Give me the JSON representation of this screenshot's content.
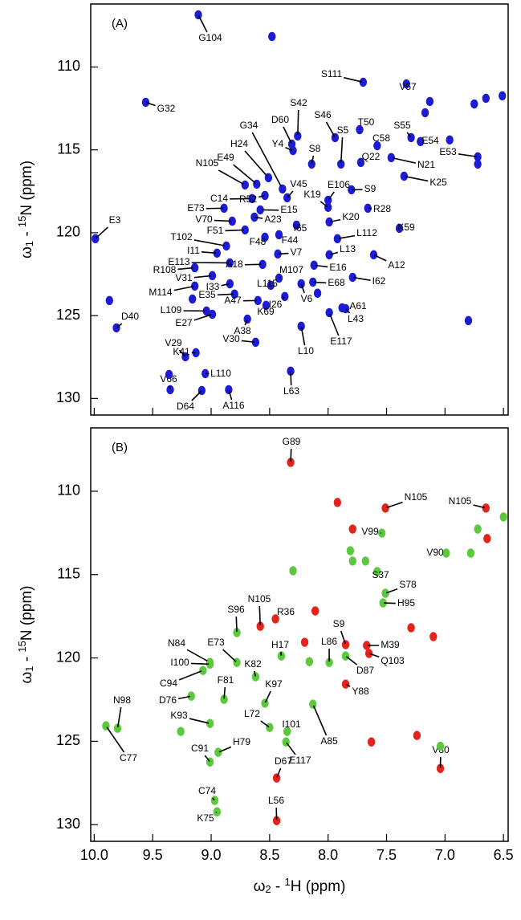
{
  "chart_data": [
    {
      "type": "scatter",
      "title": "(A)",
      "xlim": [
        10.03,
        6.46
      ],
      "ylim": [
        106.2,
        131.0
      ],
      "xticks": [
        10,
        9.5,
        9,
        8.5,
        8,
        7.5,
        7,
        6.5
      ],
      "yticks": [
        110,
        115,
        120,
        125,
        130
      ],
      "ylabel": [
        "ω",
        "1",
        " - ",
        "15",
        "N  (ppm)"
      ],
      "series": [
        {
          "color": "#1c1cd4",
          "x": [
            9.11,
            9.56,
            9.99,
            7.7,
            7.33,
            8.26,
            8.31,
            8.3,
            7.94,
            7.73,
            7.89,
            8.14,
            7.58,
            7.72,
            7.29,
            7.21,
            6.72,
            7.46,
            7.35,
            8.51,
            8.39,
            8.61,
            8.71,
            8.35,
            8.65,
            8.54,
            8.58,
            8.89,
            8.0,
            8.0,
            7.8,
            7.66,
            7.99,
            8.82,
            8.63,
            8.71,
            8.54,
            8.42,
            8.27,
            7.92,
            7.39,
            8.87,
            8.95,
            8.43,
            7.99,
            7.61,
            8.12,
            8.84,
            8.56,
            9.14,
            8.99,
            8.42,
            7.79,
            8.13,
            8.84,
            8.49,
            9.14,
            8.8,
            8.6,
            8.23,
            8.37,
            7.88,
            7.85,
            9.04,
            8.53,
            8.99,
            8.69,
            9.81,
            8.23,
            7.99,
            8.62,
            9.22,
            9.13,
            9.05,
            8.85,
            8.32,
            9.35,
            9.08,
            8.48,
            9.87,
            6.8,
            6.72,
            6.75,
            6.65,
            6.51,
            7.17,
            7.13,
            6.96,
            9.36,
            9.16,
            8.09
          ],
          "y": [
            106.85,
            112.13,
            120.36,
            110.92,
            111.02,
            114.16,
            114.65,
            115.04,
            114.26,
            113.78,
            115.86,
            115.86,
            114.75,
            115.76,
            114.26,
            114.5,
            115.42,
            115.47,
            116.59,
            116.68,
            117.36,
            117.07,
            117.12,
            117.89,
            117.94,
            117.75,
            118.62,
            118.52,
            118.47,
            118.04,
            117.41,
            118.52,
            119.35,
            119.3,
            119.06,
            119.83,
            120.27,
            120.12,
            119.54,
            120.36,
            119.73,
            120.8,
            121.23,
            121.28,
            121.33,
            121.33,
            121.96,
            121.82,
            121.91,
            122.11,
            122.59,
            122.74,
            122.69,
            122.98,
            123.08,
            123.17,
            123.22,
            123.7,
            124.09,
            123.08,
            123.85,
            124.53,
            124.58,
            124.72,
            124.38,
            124.92,
            125.21,
            125.74,
            125.64,
            124.82,
            126.61,
            127.48,
            127.24,
            128.5,
            129.47,
            128.35,
            129.47,
            129.52,
            108.16,
            124.09,
            125.3,
            115.86,
            112.23,
            111.89,
            111.74,
            112.76,
            112.08,
            114.4,
            128.55,
            124.0,
            123.65
          ],
          "labels": [
            "G104",
            "G32",
            "E3",
            "S111",
            "V57",
            "S42",
            "D60",
            "Y4",
            "S46",
            "T50",
            "S5",
            "S8",
            "C58",
            "Q22",
            "S55",
            "E54",
            "E53",
            "N21",
            "K25",
            "H24",
            "G34",
            "E49",
            "N105",
            "V45",
            "C14",
            "R52",
            "E15",
            "E73",
            "K19",
            "E106",
            "S9",
            "R28",
            "K20",
            "V70",
            "A23",
            "F51",
            "F48",
            "F44",
            "I65",
            "L112",
            "K59",
            "T102",
            "I11",
            "V7",
            "L13",
            "A12",
            "E16",
            "E113",
            "A18",
            "R108",
            "V31",
            "M107",
            "I62",
            "E68",
            "I33",
            "L115",
            "M114",
            "E35",
            "A47",
            "V6",
            "I26",
            "A61",
            "L43",
            "L109",
            "K69",
            "E27",
            "A38",
            "D40",
            "L10",
            "E117",
            "V30",
            "V29",
            "K41",
            "L110",
            "A116",
            "L63",
            "V66",
            "D64",
            null,
            null,
            null,
            null,
            null,
            null,
            null,
            null,
            null,
            null,
            null,
            null,
            null
          ]
        }
      ]
    },
    {
      "type": "scatter",
      "title": "(B)",
      "xlim": [
        10.03,
        6.46
      ],
      "ylim": [
        106.2,
        131.0
      ],
      "xticks": [
        {
          "value": 10,
          "label": "10.0"
        },
        9.5,
        {
          "value": 9,
          "label": "9.0"
        },
        8.5,
        {
          "value": 8,
          "label": "8.0"
        },
        7.5,
        {
          "value": 7,
          "label": "7.0"
        },
        6.5
      ],
      "yticks": [
        110,
        115,
        120,
        125,
        130
      ],
      "xlabel": [
        "ω",
        "2",
        " - ",
        "1",
        "H  (ppm)"
      ],
      "ylabel": [
        "ω",
        "1",
        " - ",
        "15",
        "N  (ppm)"
      ],
      "series": [
        {
          "color": "#e3241c",
          "x": [
            8.32,
            7.51,
            6.65,
            8.58,
            8.45,
            7.85,
            7.67,
            7.65,
            7.85,
            8.44,
            7.04,
            8.44,
            6.64,
            8.11,
            8.2,
            7.1,
            7.79,
            7.63,
            7.24,
            7.29,
            7.92
          ],
          "y": [
            108.27,
            111.01,
            111.01,
            118.1,
            117.66,
            119.2,
            119.25,
            119.73,
            121.57,
            127.2,
            126.63,
            129.76,
            112.84,
            117.18,
            119.06,
            118.72,
            112.27,
            125.04,
            124.65,
            118.19,
            110.67
          ],
          "labels": [
            "G89",
            "N105",
            "N105",
            "N105",
            "R36",
            "S9",
            "M39",
            "Q103",
            "Y88",
            "D67",
            "V80",
            "L56",
            null,
            null,
            null,
            null,
            null,
            null,
            null,
            null,
            null
          ]
        },
        {
          "color": "#5cc83c",
          "x": [
            7.54,
            6.99,
            7.58,
            7.51,
            7.53,
            8.78,
            8.78,
            7.99,
            7.85,
            9.01,
            9.01,
            8.4,
            8.62,
            9.07,
            9.17,
            8.89,
            8.54,
            8.35,
            8.5,
            8.13,
            9.8,
            9.01,
            9.9,
            8.36,
            8.94,
            9.01,
            8.97,
            8.95,
            8.3,
            7.81,
            7.79,
            7.68,
            6.72,
            6.5,
            6.78,
            8.16,
            9.26,
            7.04
          ],
          "y": [
            112.51,
            113.71,
            114.82,
            116.12,
            116.7,
            118.48,
            120.27,
            120.27,
            119.88,
            120.27,
            120.37,
            119.88,
            121.13,
            120.75,
            122.29,
            122.48,
            122.72,
            124.41,
            124.17,
            122.77,
            124.22,
            123.93,
            124.07,
            125.04,
            125.66,
            126.24,
            128.55,
            129.23,
            114.77,
            113.57,
            114.19,
            114.19,
            112.27,
            111.54,
            113.71,
            120.22,
            124.41,
            125.3
          ],
          "labels": [
            "V99",
            "V90",
            "S37",
            "S78",
            "H95",
            "S96",
            "E73",
            "L86",
            "D87",
            "N84",
            "I100",
            "H17",
            "K82",
            "C94",
            "D76",
            "F81",
            "K97",
            "I101",
            "L72",
            "A85",
            "N98",
            "K93",
            "C77",
            "E117",
            "H79",
            "C91",
            "C74",
            "K75",
            null,
            null,
            null,
            null,
            null,
            null,
            null,
            null,
            null,
            null
          ]
        }
      ]
    }
  ]
}
